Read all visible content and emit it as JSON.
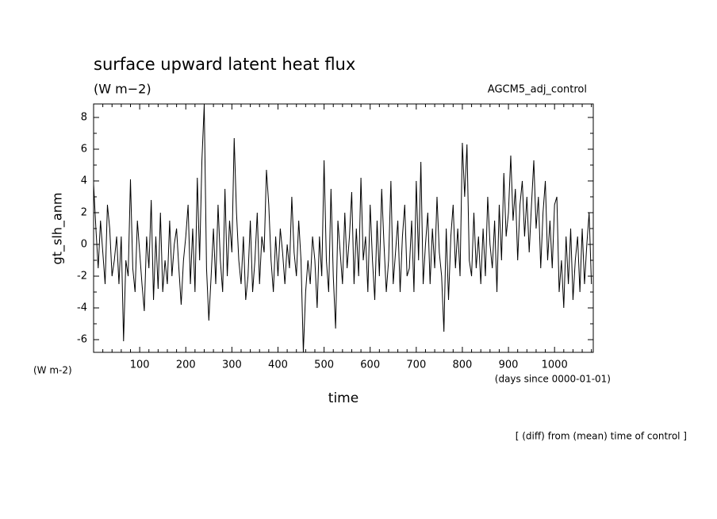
{
  "chart_data": {
    "type": "line",
    "title": "surface upward latent heat flux",
    "subtitle": "(W m−2)",
    "annotation": "AGCM5_adj_control",
    "ylabel": "gt_slh_anm",
    "yunit": "(W m-2)",
    "xunit": "(days since 0000-01-01)",
    "xlabel": "time",
    "footnote": "[ (diff) from (mean) time of control ]",
    "xlim": [
      0,
      1084
    ],
    "ylim": [
      -6.8,
      8.85
    ],
    "xticks": [
      100,
      200,
      300,
      400,
      500,
      600,
      700,
      800,
      900,
      1000
    ],
    "yticks": [
      -6,
      -4,
      -2,
      0,
      2,
      4,
      6,
      8
    ],
    "xminorticks": [
      20,
      40,
      60,
      80,
      120,
      140,
      160,
      180,
      220,
      240,
      260,
      280,
      320,
      340,
      360,
      380,
      420,
      440,
      460,
      480,
      520,
      540,
      560,
      580,
      620,
      640,
      660,
      680,
      720,
      740,
      760,
      780,
      820,
      840,
      860,
      880,
      920,
      940,
      960,
      980,
      1020,
      1040,
      1060,
      1080
    ],
    "yminorticks": [
      -5,
      -3,
      -1,
      1,
      3,
      5,
      7
    ],
    "series": [
      {
        "color": "#000000",
        "x": [
          0,
          5,
          10,
          15,
          20,
          25,
          30,
          35,
          40,
          45,
          50,
          55,
          60,
          65,
          70,
          75,
          80,
          85,
          90,
          95,
          100,
          105,
          110,
          115,
          120,
          125,
          130,
          135,
          140,
          145,
          150,
          155,
          160,
          165,
          170,
          175,
          180,
          185,
          190,
          195,
          200,
          205,
          210,
          215,
          220,
          225,
          230,
          235,
          240,
          245,
          250,
          255,
          260,
          265,
          270,
          275,
          280,
          285,
          290,
          295,
          300,
          305,
          310,
          315,
          320,
          325,
          330,
          335,
          340,
          345,
          350,
          355,
          360,
          365,
          370,
          375,
          380,
          385,
          390,
          395,
          400,
          405,
          410,
          415,
          420,
          425,
          430,
          435,
          440,
          445,
          450,
          455,
          460,
          465,
          470,
          475,
          480,
          485,
          490,
          495,
          500,
          505,
          510,
          515,
          520,
          525,
          530,
          535,
          540,
          545,
          550,
          555,
          560,
          565,
          570,
          575,
          580,
          585,
          590,
          595,
          600,
          605,
          610,
          615,
          620,
          625,
          630,
          635,
          640,
          645,
          650,
          655,
          660,
          665,
          670,
          675,
          680,
          685,
          690,
          695,
          700,
          705,
          710,
          715,
          720,
          725,
          730,
          735,
          740,
          745,
          750,
          755,
          760,
          765,
          770,
          775,
          780,
          785,
          790,
          795,
          800,
          805,
          810,
          815,
          820,
          825,
          830,
          835,
          840,
          845,
          850,
          855,
          860,
          865,
          870,
          875,
          880,
          885,
          890,
          895,
          900,
          905,
          910,
          915,
          920,
          925,
          930,
          935,
          940,
          945,
          950,
          955,
          960,
          965,
          970,
          975,
          980,
          985,
          990,
          995,
          1000,
          1005,
          1010,
          1015,
          1020,
          1025,
          1030,
          1035,
          1040,
          1045,
          1050,
          1055,
          1060,
          1065,
          1070,
          1075,
          1080
        ],
        "values": [
          3.8,
          1.0,
          -1.5,
          1.5,
          -0.5,
          -2.5,
          2.5,
          1.0,
          -2.0,
          -1.0,
          0.5,
          -2.5,
          0.5,
          -6.1,
          -1.0,
          -2.0,
          4.1,
          -1.5,
          -3.0,
          1.5,
          -0.5,
          -2.5,
          -4.2,
          0.5,
          -1.5,
          2.8,
          -3.5,
          0.5,
          -2.8,
          2.0,
          -3.0,
          -1.0,
          -2.5,
          1.5,
          -2.0,
          0.0,
          1.0,
          -1.5,
          -3.8,
          -1.0,
          0.5,
          2.5,
          -2.5,
          1.0,
          -3.0,
          4.2,
          -1.0,
          5.3,
          8.8,
          -1.5,
          -4.8,
          -2.0,
          1.0,
          -2.5,
          2.5,
          -1.0,
          -3.0,
          3.5,
          -2.0,
          1.5,
          -0.5,
          6.7,
          2.0,
          -1.0,
          -2.5,
          0.5,
          -3.5,
          -2.0,
          1.5,
          -3.0,
          -1.0,
          2.0,
          -2.5,
          0.5,
          -0.5,
          4.7,
          2.5,
          -1.0,
          -3.0,
          0.5,
          -2.0,
          1.0,
          -0.5,
          -2.5,
          0.0,
          -1.5,
          3.0,
          -0.5,
          -2.0,
          1.5,
          -1.0,
          -6.8,
          -3.0,
          -1.0,
          -2.5,
          0.5,
          -1.0,
          -4.0,
          0.5,
          -2.0,
          5.3,
          -1.0,
          -3.0,
          3.5,
          -2.0,
          -5.3,
          1.5,
          -0.5,
          -2.5,
          2.0,
          -1.5,
          0.5,
          3.3,
          -2.5,
          1.0,
          -2.0,
          4.2,
          -1.0,
          0.5,
          -3.0,
          2.5,
          -1.0,
          -3.5,
          1.5,
          -2.0,
          3.5,
          0.0,
          -3.0,
          -1.0,
          4.0,
          -2.5,
          -0.5,
          1.5,
          -3.0,
          0.5,
          2.5,
          -2.0,
          -1.5,
          1.5,
          -3.0,
          4.0,
          -1.0,
          5.2,
          -2.5,
          0.0,
          2.0,
          -2.5,
          1.0,
          -1.5,
          3.0,
          -0.5,
          -2.0,
          -5.5,
          1.0,
          -3.5,
          0.5,
          2.5,
          -1.5,
          1.0,
          -2.0,
          6.4,
          3.0,
          6.3,
          -1.0,
          -2.0,
          2.0,
          -1.5,
          0.5,
          -2.5,
          1.0,
          -2.0,
          3.0,
          0.0,
          -1.5,
          1.5,
          -3.0,
          2.5,
          -1.0,
          4.5,
          0.5,
          2.0,
          5.6,
          1.5,
          3.5,
          -1.0,
          2.5,
          4.0,
          0.5,
          3.0,
          -0.5,
          2.5,
          5.3,
          1.0,
          3.0,
          -1.5,
          2.0,
          4.0,
          -1.0,
          1.5,
          -1.5,
          2.5,
          3.0,
          -3.0,
          -1.0,
          -4.0,
          0.5,
          -2.5,
          1.0,
          -3.5,
          -1.0,
          0.5,
          -3.0,
          1.0,
          -2.5,
          0.0,
          2.0,
          -2.5
        ]
      }
    ]
  }
}
